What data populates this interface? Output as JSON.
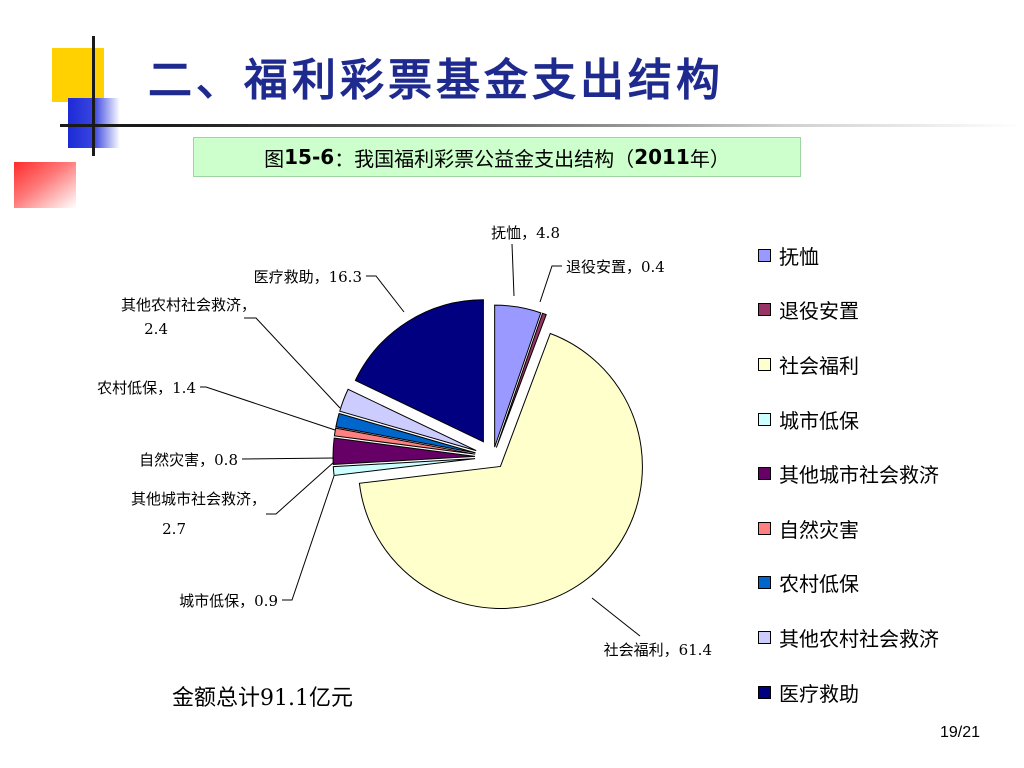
{
  "slide": {
    "title": "二、福利彩票基金支出结构",
    "caption": {
      "prefix": "图",
      "figure_no": "15-6",
      "middle": "：我国福利彩票公益金支出结构（",
      "year": "2011",
      "suffix": "年）"
    },
    "total_note": "金额总计91.1亿元",
    "page_number": "19/21"
  },
  "chart_data": {
    "type": "pie",
    "title": "",
    "unit": "亿元",
    "total": 91.1,
    "slices": [
      {
        "name": "抚恤",
        "value": 4.8,
        "label": "抚恤，4.8",
        "color": "#9999ff"
      },
      {
        "name": "退役安置",
        "value": 0.4,
        "label": "退役安置，0.4",
        "color": "#993366"
      },
      {
        "name": "社会福利",
        "value": 61.4,
        "label": "社会福利，61.4",
        "color": "#ffffcc"
      },
      {
        "name": "城市低保",
        "value": 0.9,
        "label": "城市低保，0.9",
        "color": "#ccffff"
      },
      {
        "name": "其他城市社会救济",
        "value": 2.7,
        "label_lines": [
          "其他城市社会救济，",
          "2.7"
        ],
        "color": "#660066"
      },
      {
        "name": "自然灾害",
        "value": 0.8,
        "label": "自然灾害，0.8",
        "color": "#ff8080"
      },
      {
        "name": "农村低保",
        "value": 1.4,
        "label": "农村低保，1.4",
        "color": "#0066cc"
      },
      {
        "name": "其他农村社会救济",
        "value": 2.4,
        "label_lines": [
          "其他农村社会救济，",
          "2.4"
        ],
        "color": "#ccccff"
      },
      {
        "name": "医疗救助",
        "value": 16.3,
        "label": "医疗救助，16.3",
        "color": "#000080"
      }
    ],
    "legend_position": "right",
    "exploded": true
  }
}
